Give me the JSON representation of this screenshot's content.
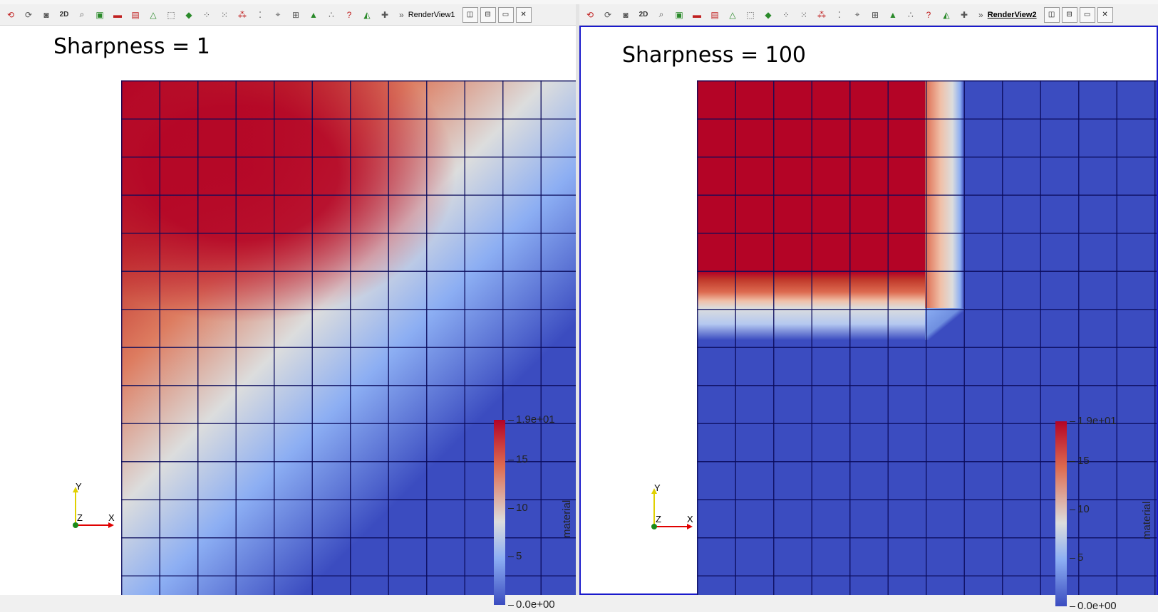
{
  "views": [
    {
      "id": "left",
      "view_name": "RenderView1",
      "active": false,
      "heading": "Sharpness = 1",
      "colorbar": {
        "title": "material",
        "labels": [
          "1.9e+01",
          "15",
          "10",
          "5",
          "0.0e+00"
        ]
      },
      "axes": {
        "y": "Y",
        "x": "X",
        "z": "Z"
      }
    },
    {
      "id": "right",
      "view_name": "RenderView2",
      "active": true,
      "heading": "Sharpness = 100",
      "colorbar": {
        "title": "material",
        "labels": [
          "1.9e+01",
          "15",
          "10",
          "5",
          "0.0e+00"
        ]
      },
      "axes": {
        "y": "Y",
        "x": "X",
        "z": "Z"
      }
    }
  ],
  "toolbar": {
    "two_d_label": "2D",
    "more_glyph": "»",
    "icons": [
      "reset-camera-icon",
      "zoom-closest-icon",
      "capture-screenshot-icon",
      "projection-2d-toggle",
      "zoom-to-box-icon",
      "select-cells-on-icon",
      "select-points-on-icon",
      "select-cells-frustum-icon",
      "select-points-frustum-icon",
      "select-block-icon",
      "interactive-select-cells-icon",
      "interactive-select-points-icon",
      "select-polygon-cells-icon",
      "select-polygon-points-icon",
      "hover-points-icon",
      "hover-cells-icon",
      "grow-selection-icon",
      "shrink-selection-icon",
      "clear-selection-icon",
      "query-icon",
      "extract-selection-icon",
      "add-ruler-icon"
    ]
  },
  "colors": {
    "low": "#3b4cc0",
    "mid": "#dcdddd",
    "high": "#b40426",
    "active_border": "#1a1acc"
  }
}
